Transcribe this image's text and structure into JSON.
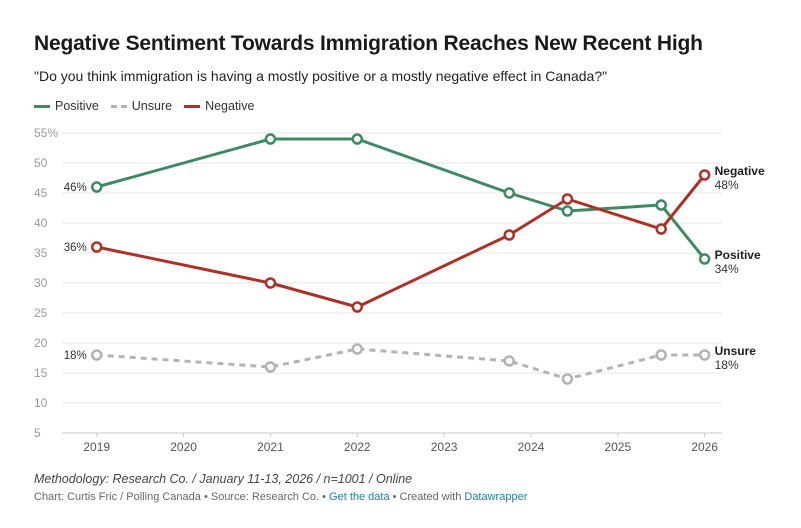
{
  "header": {
    "title": "Negative Sentiment Towards Immigration Reaches New Recent High",
    "subtitle": "\"Do you think immigration is having a mostly positive or a mostly negative effect in Canada?\""
  },
  "footer": {
    "notes": "Methodology: Research Co. / January 11-13, 2026 / n=1001 / Online",
    "credit": "Chart: Curtis Fric / Polling Canada • Source: Research Co. • ",
    "get_data_link": "Get the data",
    "created_with": " • Created with ",
    "datawrapper_link": "Datawrapper"
  },
  "chart_data": {
    "type": "line",
    "title": "Negative Sentiment Towards Immigration Reaches New Recent High",
    "xlabel": "",
    "ylabel": "",
    "xlim": [
      2018.6,
      2026.2
    ],
    "ylim": [
      5,
      55
    ],
    "y_ticks": [
      5,
      10,
      15,
      20,
      25,
      30,
      35,
      40,
      45,
      50,
      55
    ],
    "y_tick_labels": [
      "5",
      "10",
      "15",
      "20",
      "25",
      "30",
      "35",
      "40",
      "45",
      "50",
      "55%"
    ],
    "x_ticks": [
      2019,
      2020,
      2021,
      2022,
      2023,
      2024,
      2025,
      2026
    ],
    "x_tick_labels": [
      "2019",
      "2020",
      "2021",
      "2022",
      "2023",
      "2024",
      "2025",
      "2026"
    ],
    "grid": true,
    "legend_position": "top-left",
    "x": [
      2019.0,
      2021.0,
      2022.0,
      2023.75,
      2024.42,
      2025.5,
      2026.0
    ],
    "series": [
      {
        "name": "Positive",
        "color": "#3d8a63",
        "style": "solid",
        "values": [
          46,
          54,
          54,
          45,
          42,
          43,
          34
        ],
        "start_label": "46%",
        "end_label_name": "Positive",
        "end_label_value": "34%"
      },
      {
        "name": "Unsure",
        "color": "#b3b3b3",
        "style": "dashed",
        "values": [
          18,
          16,
          19,
          17,
          14,
          18,
          18
        ],
        "start_label": "18%",
        "end_label_name": "Unsure",
        "end_label_value": "18%"
      },
      {
        "name": "Negative",
        "color": "#ad3127",
        "style": "solid",
        "values": [
          36,
          30,
          26,
          38,
          44,
          39,
          48
        ],
        "start_label": "36%",
        "end_label_name": "Negative",
        "end_label_value": "48%"
      }
    ]
  }
}
